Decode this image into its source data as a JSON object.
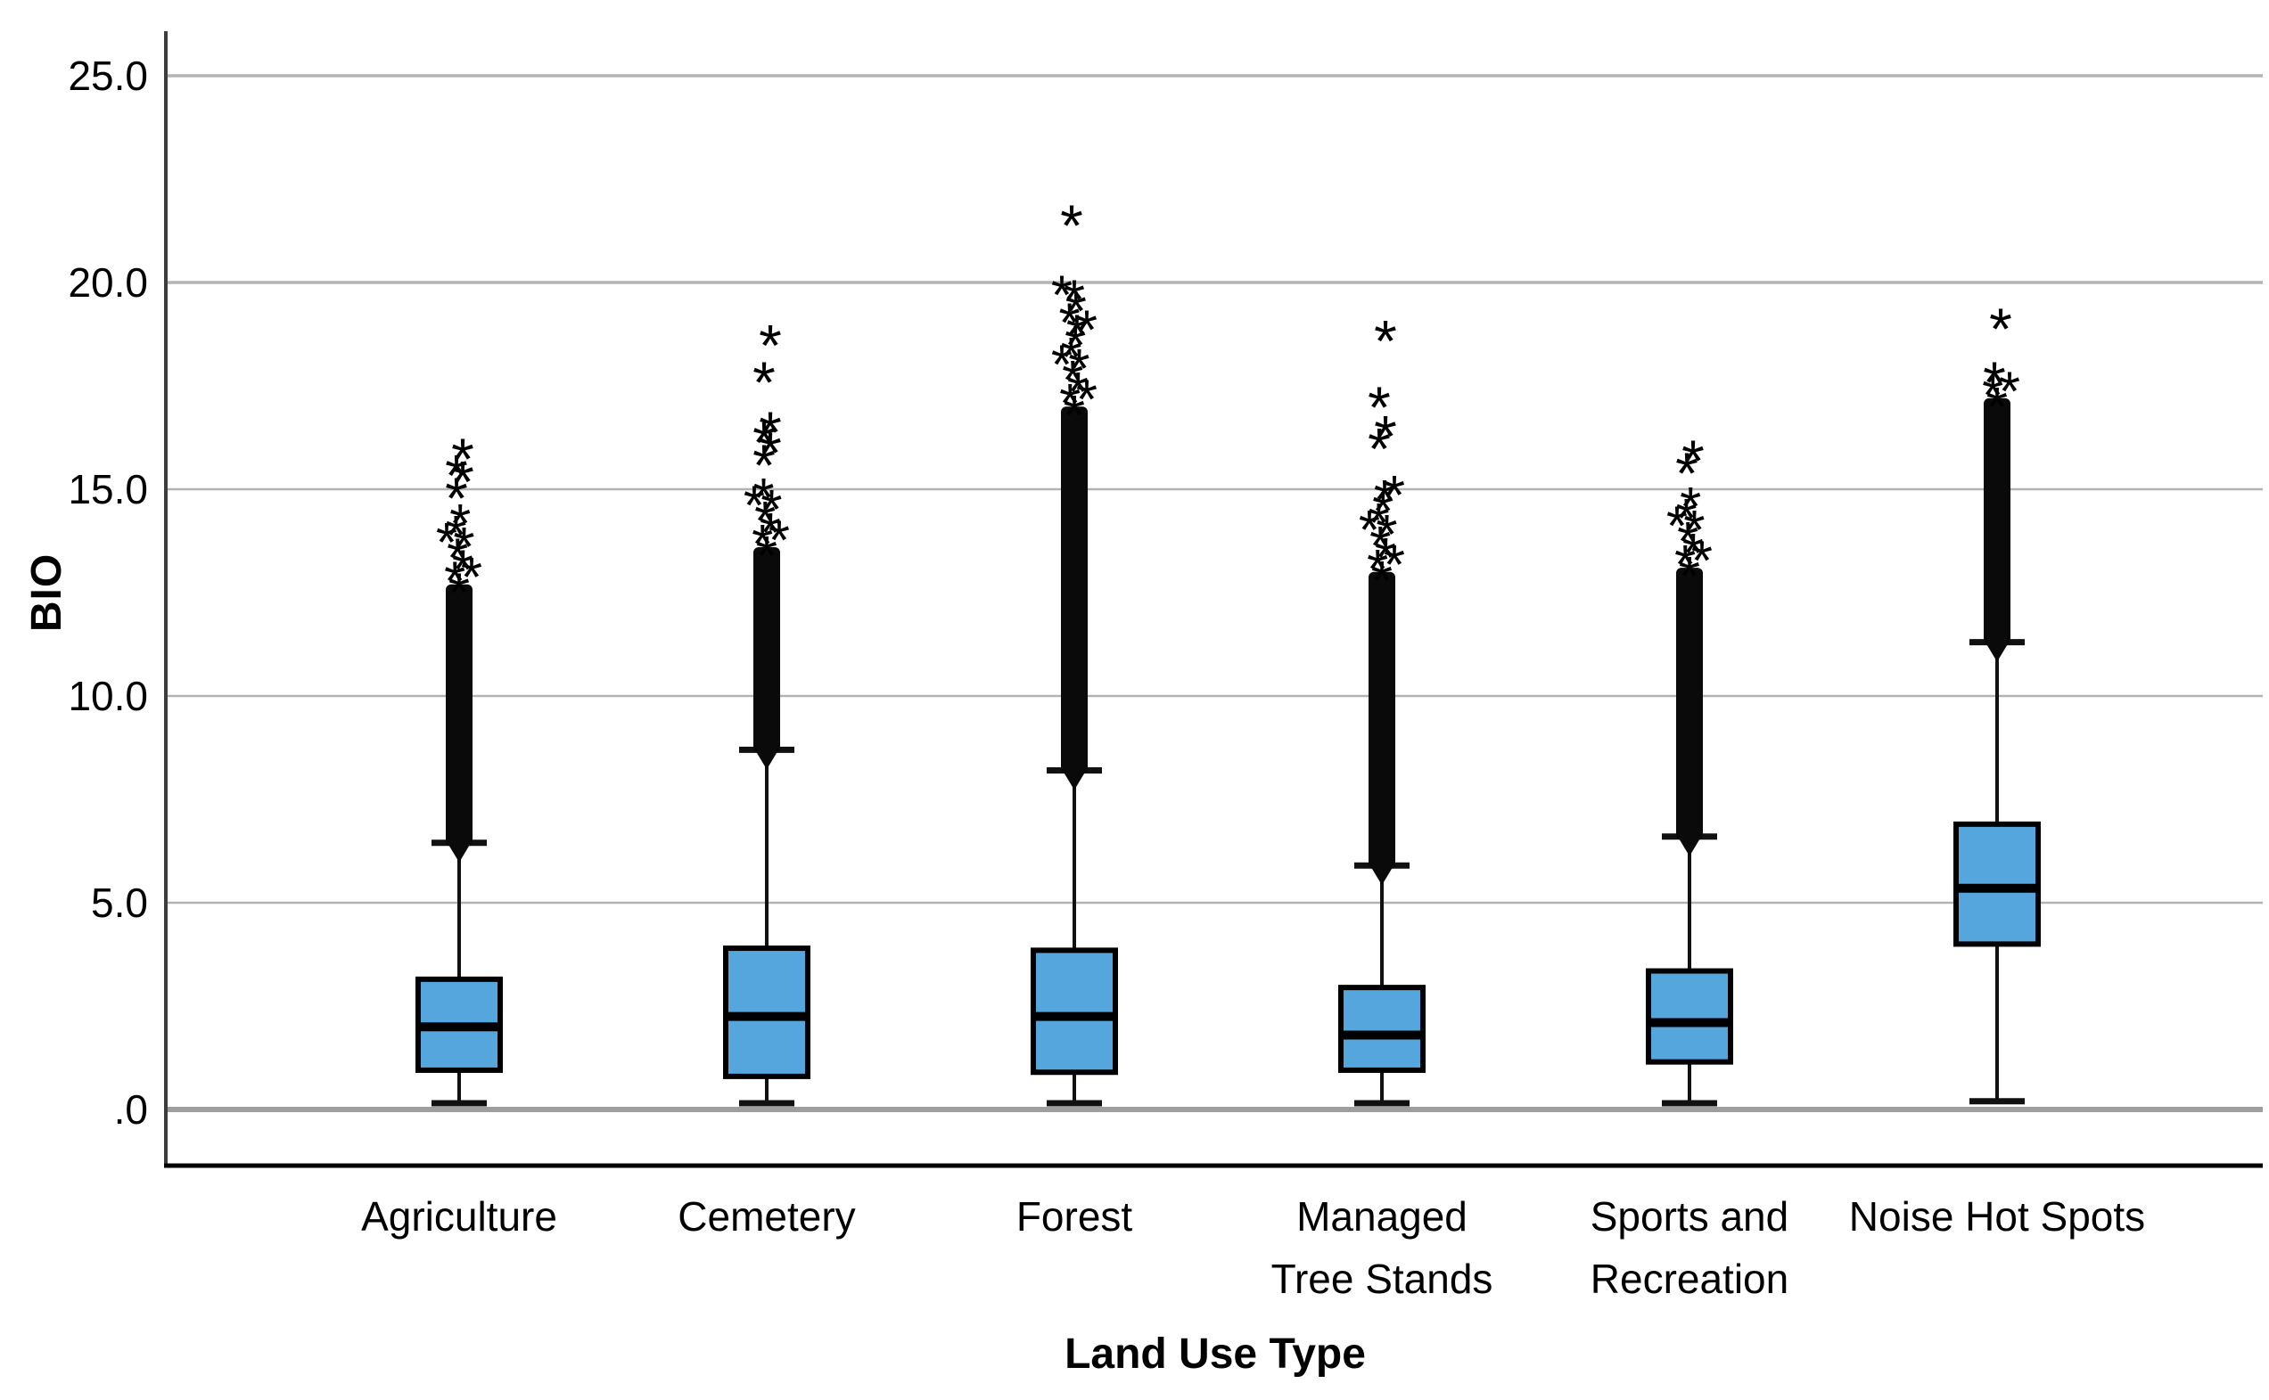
{
  "chart_data": {
    "type": "boxplot",
    "title": "",
    "ylabel": "BIO",
    "xlabel": "Land Use Type",
    "ylim": [
      0,
      26.5
    ],
    "grid": true,
    "box_fill_color": "#55a6dc",
    "box_stroke_color": "#000000",
    "outlier_marker": "*",
    "yticks": [
      {
        "label": ".0",
        "value": 0
      },
      {
        "label": "5.0",
        "value": 5
      },
      {
        "label": "10.0",
        "value": 10
      },
      {
        "label": "15.0",
        "value": 15
      },
      {
        "label": "20.0",
        "value": 20
      },
      {
        "label": "25.0",
        "value": 25
      }
    ],
    "categories": [
      "Agriculture",
      "Cemetery",
      "Forest",
      "Managed Tree Stands",
      "Sports and Recreation",
      "Noise Hot Spots"
    ],
    "series": [
      {
        "name": "Agriculture",
        "label_lines": [
          "Agriculture"
        ],
        "whisker_low": 0.15,
        "q1": 0.95,
        "median": 2.0,
        "q3": 3.15,
        "whisker_high": 6.45,
        "dense_outlier_column_to": 12.7,
        "scattered_outliers_to": 14.5,
        "extreme_outliers": [
          15.0,
          15.4,
          15.55,
          15.95
        ]
      },
      {
        "name": "Cemetery",
        "label_lines": [
          "Cemetery"
        ],
        "whisker_low": 0.15,
        "q1": 0.8,
        "median": 2.25,
        "q3": 3.9,
        "whisker_high": 8.7,
        "dense_outlier_column_to": 13.6,
        "scattered_outliers_to": 15.2,
        "extreme_outliers": [
          15.8,
          16.1,
          16.35,
          16.6,
          17.8,
          18.7
        ]
      },
      {
        "name": "Forest",
        "label_lines": [
          "Forest"
        ],
        "whisker_low": 0.15,
        "q1": 0.9,
        "median": 2.25,
        "q3": 3.85,
        "whisker_high": 8.2,
        "dense_outlier_column_to": 17.0,
        "scattered_outliers_to": 20.0,
        "extreme_outliers": [
          21.6
        ]
      },
      {
        "name": "Managed Tree Stands",
        "label_lines": [
          "Managed",
          "Tree Stands"
        ],
        "whisker_low": 0.15,
        "q1": 0.95,
        "median": 1.8,
        "q3": 2.95,
        "whisker_high": 5.9,
        "dense_outlier_column_to": 13.0,
        "scattered_outliers_to": 15.2,
        "extreme_outliers": [
          16.2,
          16.5,
          17.2,
          18.8
        ]
      },
      {
        "name": "Sports and Recreation",
        "label_lines": [
          "Sports and",
          "Recreation"
        ],
        "whisker_low": 0.15,
        "q1": 1.15,
        "median": 2.1,
        "q3": 3.35,
        "whisker_high": 6.6,
        "dense_outlier_column_to": 13.1,
        "scattered_outliers_to": 14.9,
        "extreme_outliers": [
          15.6,
          15.9
        ]
      },
      {
        "name": "Noise Hot Spots",
        "label_lines": [
          "Noise Hot Spots"
        ],
        "whisker_low": 0.2,
        "q1": 4.0,
        "median": 5.35,
        "q3": 6.9,
        "whisker_high": 11.3,
        "dense_outlier_column_to": 17.2,
        "scattered_outliers_to": 17.5,
        "extreme_outliers": [
          17.8,
          19.1
        ]
      }
    ]
  }
}
